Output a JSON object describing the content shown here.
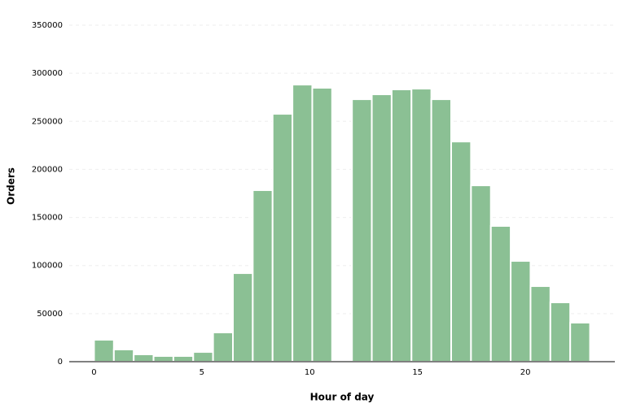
{
  "chart_data": {
    "type": "histogram",
    "xlabel": "Hour of day",
    "ylabel": "Orders",
    "bins": [
      0,
      0.92,
      1.84,
      2.76,
      3.68,
      4.6,
      5.52,
      6.44,
      7.36,
      8.28,
      9.2,
      10.12,
      11.04,
      11.96,
      12.88,
      13.8,
      14.72,
      15.64,
      16.56,
      17.48,
      18.4,
      19.32,
      20.24,
      21.16,
      22.08,
      23
    ],
    "values": [
      22800,
      12700,
      7600,
      5900,
      5900,
      10100,
      30400,
      92100,
      178400,
      257800,
      288200,
      284900,
      0,
      273000,
      278100,
      283200,
      284000,
      273000,
      229000,
      183400,
      141200,
      104800,
      78600,
      61700,
      40600
    ],
    "color": "#8bc094",
    "xlim": [
      -1.15,
      24.15
    ],
    "xticks": [
      0,
      5,
      10,
      15,
      20
    ],
    "ylim": [
      0,
      350000
    ],
    "yticks": [
      0,
      50000,
      100000,
      150000,
      200000,
      250000,
      300000,
      350000
    ],
    "grid": true
  }
}
